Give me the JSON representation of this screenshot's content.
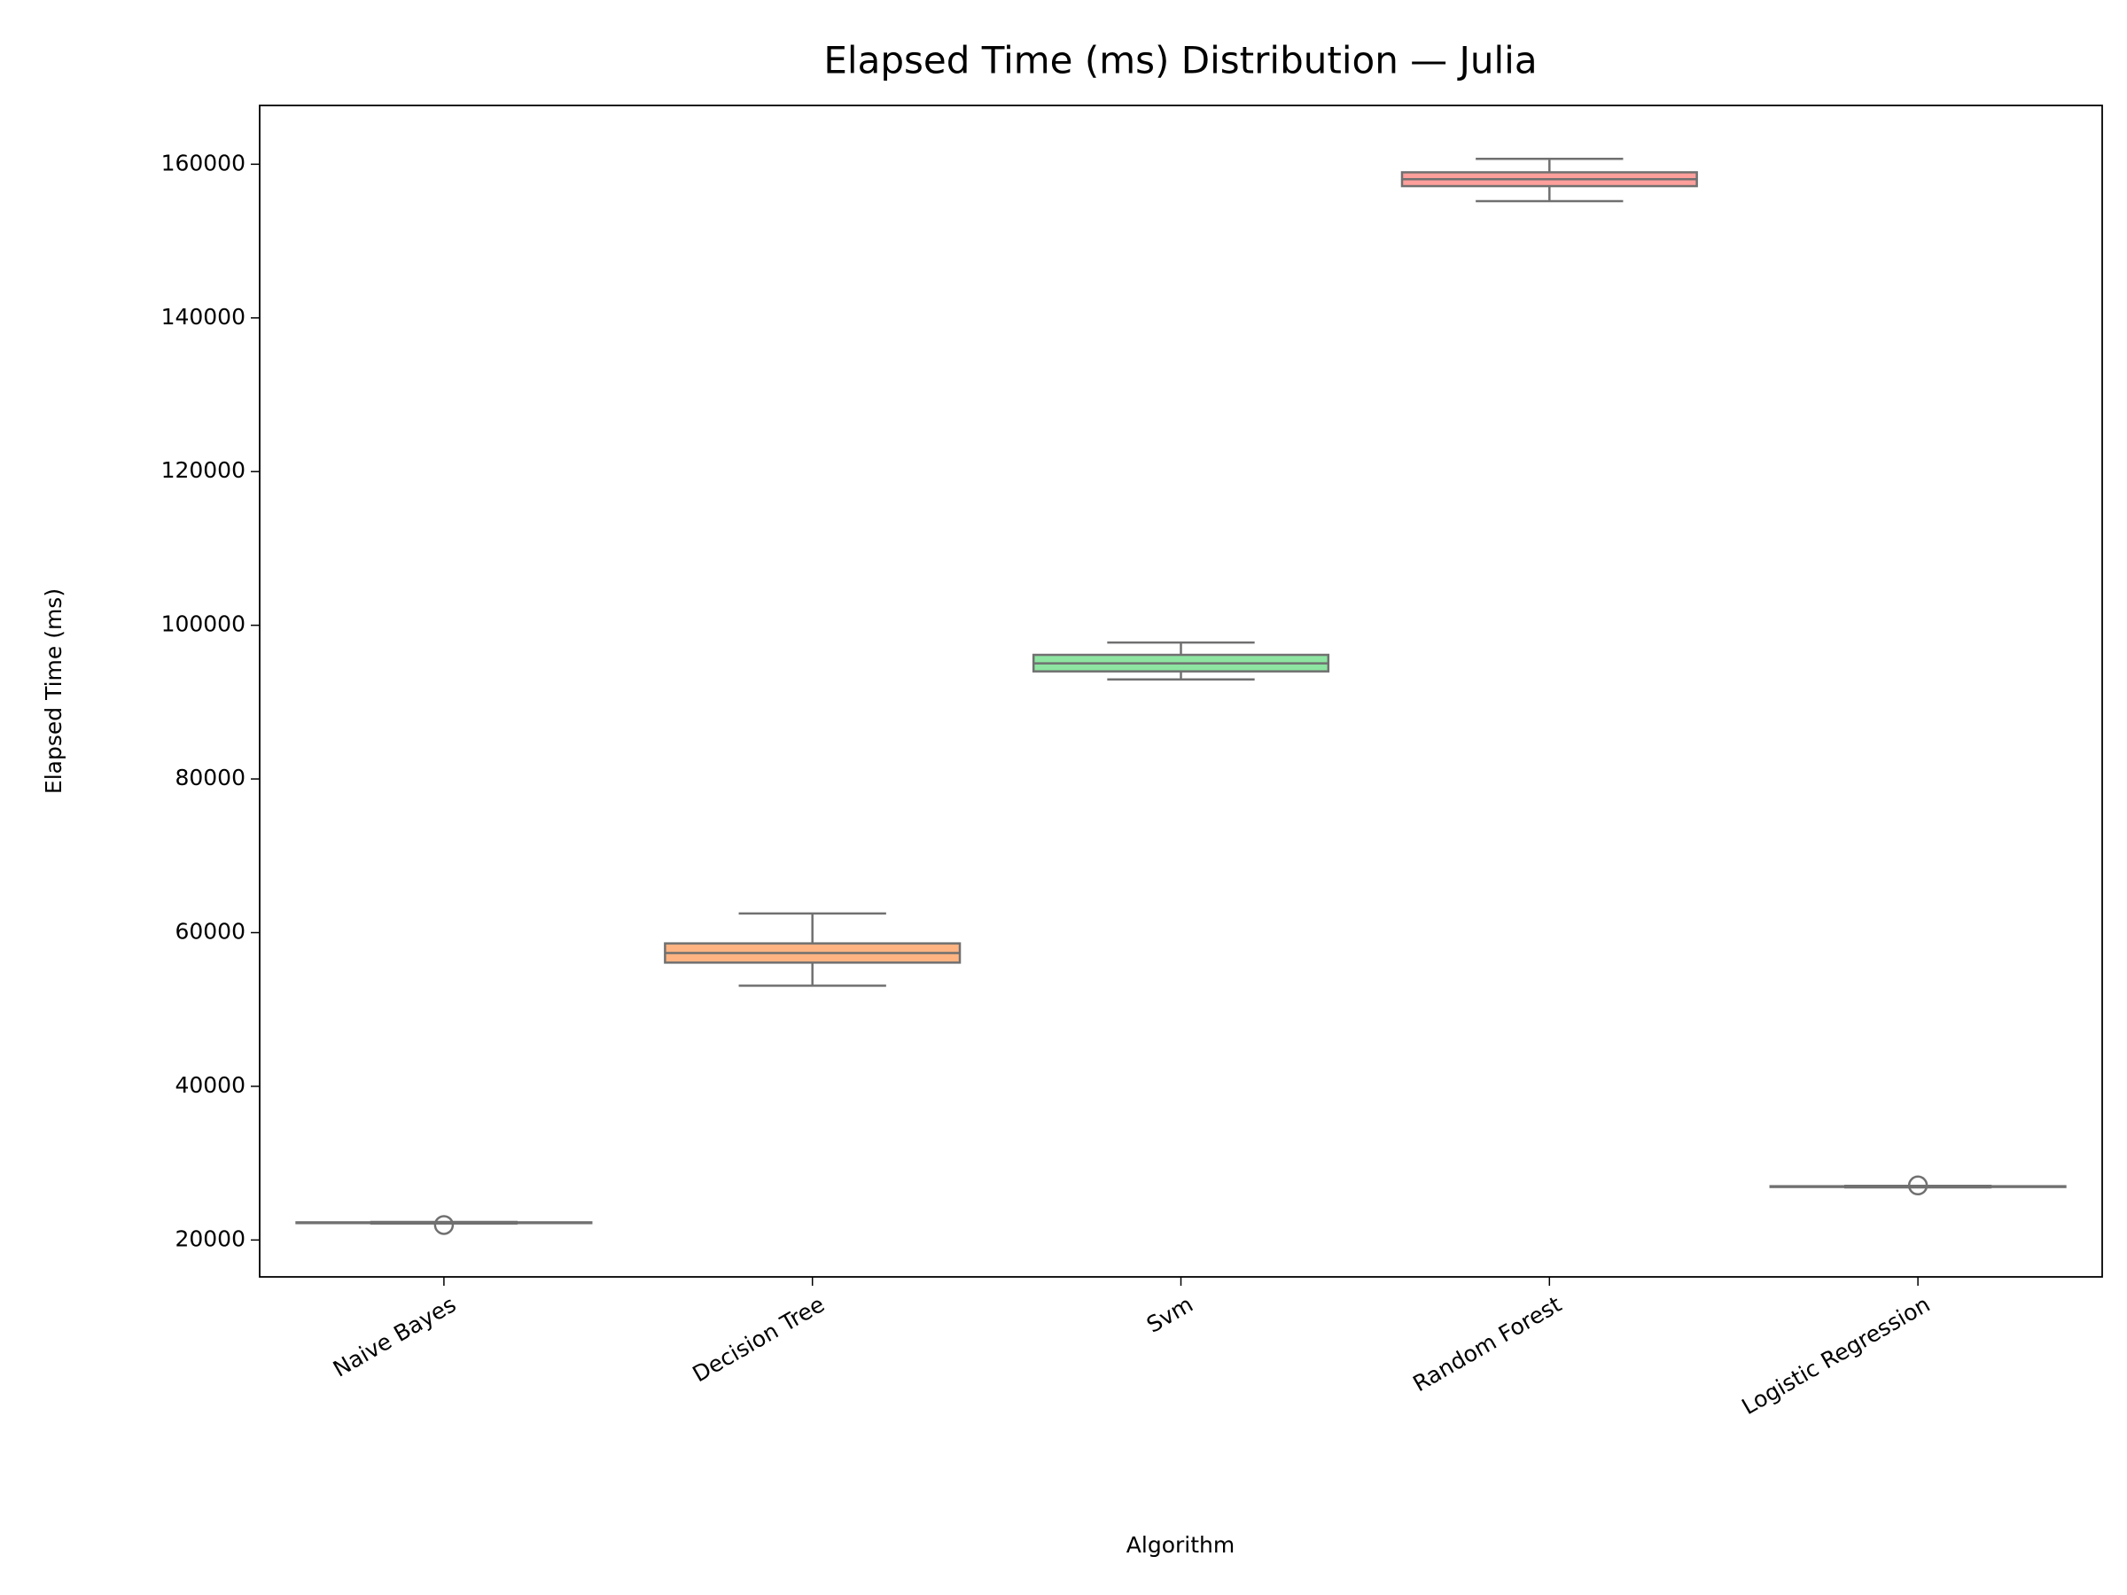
{
  "chart_data": {
    "type": "box",
    "title": "Elapsed Time (ms) Distribution — Julia",
    "x_label": "Algorithm",
    "y_label": "Elapsed Time (ms)",
    "categories": [
      "Naive Bayes",
      "Decision Tree",
      "Svm",
      "Random Forest",
      "Logistic Regression"
    ],
    "colors": [
      "#a1c9f4",
      "#ffb482",
      "#8de5a1",
      "#ff9f9b",
      "#d0bbff"
    ],
    "edge_color": "#707070",
    "boxes": [
      {
        "min": 22150,
        "q1": 22200,
        "median": 22250,
        "q3": 22300,
        "max": 22350,
        "outliers": [
          21950
        ]
      },
      {
        "min": 53100,
        "q1": 56100,
        "median": 57350,
        "q3": 58600,
        "max": 62500,
        "outliers": []
      },
      {
        "min": 92950,
        "q1": 94000,
        "median": 95050,
        "q3": 96150,
        "max": 97750,
        "outliers": []
      },
      {
        "min": 155200,
        "q1": 157150,
        "median": 158050,
        "q3": 158950,
        "max": 160700,
        "outliers": []
      },
      {
        "min": 26850,
        "q1": 26900,
        "median": 26950,
        "q3": 27000,
        "max": 27050,
        "outliers": [
          27100
        ]
      }
    ],
    "ylim": [
      15200,
      167650
    ],
    "yticks": [
      20000,
      40000,
      60000,
      80000,
      100000,
      120000,
      140000,
      160000
    ],
    "grid": false
  }
}
